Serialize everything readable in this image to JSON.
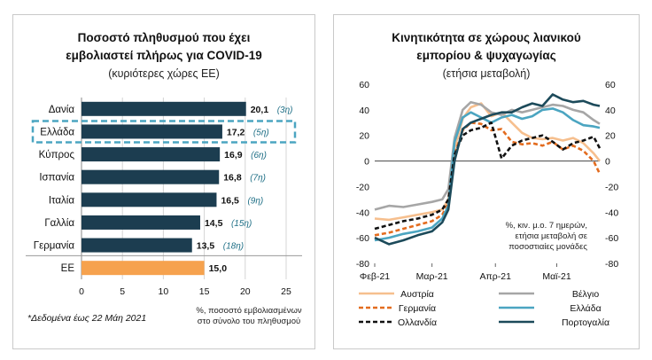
{
  "chart_data": [
    {
      "type": "bar",
      "orientation": "horizontal",
      "title_lines": [
        "Ποσοστό πληθυσμού που έχει",
        "εμβολιαστεί πλήρως για COVID-19"
      ],
      "subtitle": "(κυριότερες χώρες ΕΕ)",
      "categories": [
        "Δανία",
        "Ελλάδα",
        "Κύπρος",
        "Ισπανία",
        "Ιταλία",
        "Γαλλία",
        "Γερμανία",
        "ΕΕ"
      ],
      "values": [
        20.1,
        17.2,
        16.9,
        16.8,
        16.5,
        14.5,
        13.5,
        15.0
      ],
      "value_labels": [
        "20,1",
        "17,2",
        "16,9",
        "16,8",
        "16,5",
        "14,5",
        "13,5",
        "15,0"
      ],
      "rank_labels": [
        "(3η)",
        "(5η)",
        "(6η)",
        "(7η)",
        "(9η)",
        "(15η)",
        "(18η)",
        ""
      ],
      "highlight_category": "Ελλάδα",
      "colors": {
        "bars": "#1c3d50",
        "eu_bar": "#f6a24e",
        "highlight_box": "#4ba5c1"
      },
      "xlim": [
        0,
        25
      ],
      "xticks": [
        "0",
        "5",
        "10",
        "15",
        "20",
        "25"
      ],
      "xlabel_lines": [
        "%, ποσοστό εμβολιασμένων",
        "στο σύνολο του πληθυσμού"
      ],
      "footnote": "*Δεδομένα έως 22 Μάη 2021"
    },
    {
      "type": "line",
      "title_lines": [
        "Κινητικότητα σε χώρους λιανικού",
        "εμπορίου & ψυχαγωγίας"
      ],
      "subtitle": "(ετήσια μεταβολή)",
      "ylim": [
        -80,
        60
      ],
      "yticks": [
        "60",
        "40",
        "20",
        "0",
        "-20",
        "-40",
        "-60",
        "-80"
      ],
      "x_range": [
        "2021-02-01",
        "2021-05-22"
      ],
      "x_tick_labels": [
        "Φεβ-21",
        "Μαρ-21",
        "Απρ-21",
        "Μαϊ-21"
      ],
      "x_tick_dates": [
        "2021-02-01",
        "2021-03-01",
        "2021-04-01",
        "2021-05-01"
      ],
      "note_lines": [
        "%, κιν. μ.ο. 7 ημερών,",
        "ετήσια μεταβολή σε",
        "ποσοστιαίες μονάδες"
      ],
      "legend_position": "bottom",
      "series": [
        {
          "name": "Αυστρία",
          "color": "#f6bf8e",
          "dash": "solid",
          "dates": [
            "2021-02-01",
            "2021-02-08",
            "2021-02-15",
            "2021-02-22",
            "2021-03-01",
            "2021-03-06",
            "2021-03-09",
            "2021-03-12",
            "2021-03-16",
            "2021-03-20",
            "2021-03-25",
            "2021-03-30",
            "2021-04-04",
            "2021-04-09",
            "2021-04-14",
            "2021-04-19",
            "2021-04-24",
            "2021-04-29",
            "2021-05-04",
            "2021-05-09",
            "2021-05-14",
            "2021-05-19",
            "2021-05-22"
          ],
          "values": [
            -45,
            -46,
            -44,
            -42,
            -40,
            -38,
            -30,
            10,
            33,
            42,
            45,
            35,
            38,
            30,
            22,
            18,
            17,
            18,
            16,
            18,
            14,
            6,
            0
          ]
        },
        {
          "name": "Βέλγιο",
          "color": "#a6a6a6",
          "dash": "solid",
          "dates": [
            "2021-02-01",
            "2021-02-08",
            "2021-02-15",
            "2021-02-22",
            "2021-03-01",
            "2021-03-06",
            "2021-03-09",
            "2021-03-12",
            "2021-03-16",
            "2021-03-20",
            "2021-03-25",
            "2021-03-30",
            "2021-04-04",
            "2021-04-09",
            "2021-04-14",
            "2021-04-19",
            "2021-04-24",
            "2021-04-29",
            "2021-05-04",
            "2021-05-09",
            "2021-05-14",
            "2021-05-19",
            "2021-05-22"
          ],
          "values": [
            -38,
            -35,
            -36,
            -34,
            -32,
            -30,
            -22,
            18,
            40,
            46,
            44,
            38,
            36,
            40,
            38,
            40,
            42,
            44,
            43,
            40,
            38,
            32,
            29
          ]
        },
        {
          "name": "Γερμανία",
          "color": "#e36c1f",
          "dash": "dash",
          "dates": [
            "2021-02-01",
            "2021-02-08",
            "2021-02-15",
            "2021-02-22",
            "2021-03-01",
            "2021-03-06",
            "2021-03-09",
            "2021-03-12",
            "2021-03-16",
            "2021-03-20",
            "2021-03-25",
            "2021-03-30",
            "2021-04-04",
            "2021-04-09",
            "2021-04-14",
            "2021-04-19",
            "2021-04-24",
            "2021-04-29",
            "2021-05-04",
            "2021-05-09",
            "2021-05-14",
            "2021-05-19",
            "2021-05-22"
          ],
          "values": [
            -58,
            -56,
            -53,
            -50,
            -47,
            -42,
            -33,
            5,
            24,
            30,
            29,
            24,
            25,
            15,
            13,
            14,
            12,
            15,
            9,
            12,
            8,
            0,
            -10
          ]
        },
        {
          "name": "Ελλάδα",
          "color": "#4ba5c1",
          "dash": "solid",
          "dates": [
            "2021-02-01",
            "2021-02-08",
            "2021-02-15",
            "2021-02-22",
            "2021-03-01",
            "2021-03-06",
            "2021-03-09",
            "2021-03-12",
            "2021-03-16",
            "2021-03-20",
            "2021-03-25",
            "2021-03-30",
            "2021-04-04",
            "2021-04-09",
            "2021-04-14",
            "2021-04-19",
            "2021-04-24",
            "2021-04-29",
            "2021-05-04",
            "2021-05-09",
            "2021-05-14",
            "2021-05-19",
            "2021-05-22"
          ],
          "values": [
            -62,
            -60,
            -57,
            -55,
            -52,
            -45,
            -35,
            15,
            34,
            38,
            34,
            30,
            34,
            36,
            33,
            35,
            40,
            41,
            38,
            32,
            28,
            27,
            26
          ]
        },
        {
          "name": "Ολλανδία",
          "color": "#111111",
          "dash": "dash",
          "dates": [
            "2021-02-01",
            "2021-02-08",
            "2021-02-15",
            "2021-02-22",
            "2021-03-01",
            "2021-03-06",
            "2021-03-09",
            "2021-03-12",
            "2021-03-16",
            "2021-03-20",
            "2021-03-25",
            "2021-03-30",
            "2021-04-04",
            "2021-04-09",
            "2021-04-14",
            "2021-04-19",
            "2021-04-24",
            "2021-04-29",
            "2021-05-04",
            "2021-05-09",
            "2021-05-14",
            "2021-05-19",
            "2021-05-22"
          ],
          "values": [
            -53,
            -50,
            -47,
            -45,
            -42,
            -38,
            -30,
            5,
            20,
            24,
            26,
            30,
            2,
            12,
            16,
            18,
            20,
            15,
            9,
            14,
            16,
            19,
            10
          ]
        },
        {
          "name": "Πορτογαλία",
          "color": "#1c4a5a",
          "dash": "solid",
          "dates": [
            "2021-02-01",
            "2021-02-08",
            "2021-02-15",
            "2021-02-22",
            "2021-03-01",
            "2021-03-06",
            "2021-03-09",
            "2021-03-12",
            "2021-03-16",
            "2021-03-20",
            "2021-03-25",
            "2021-03-30",
            "2021-04-04",
            "2021-04-09",
            "2021-04-14",
            "2021-04-19",
            "2021-04-24",
            "2021-04-29",
            "2021-05-04",
            "2021-05-09",
            "2021-05-14",
            "2021-05-19",
            "2021-05-22"
          ],
          "values": [
            -60,
            -65,
            -62,
            -58,
            -55,
            -48,
            -38,
            0,
            25,
            30,
            33,
            36,
            38,
            38,
            42,
            45,
            43,
            52,
            48,
            46,
            47,
            44,
            43
          ]
        }
      ]
    }
  ]
}
